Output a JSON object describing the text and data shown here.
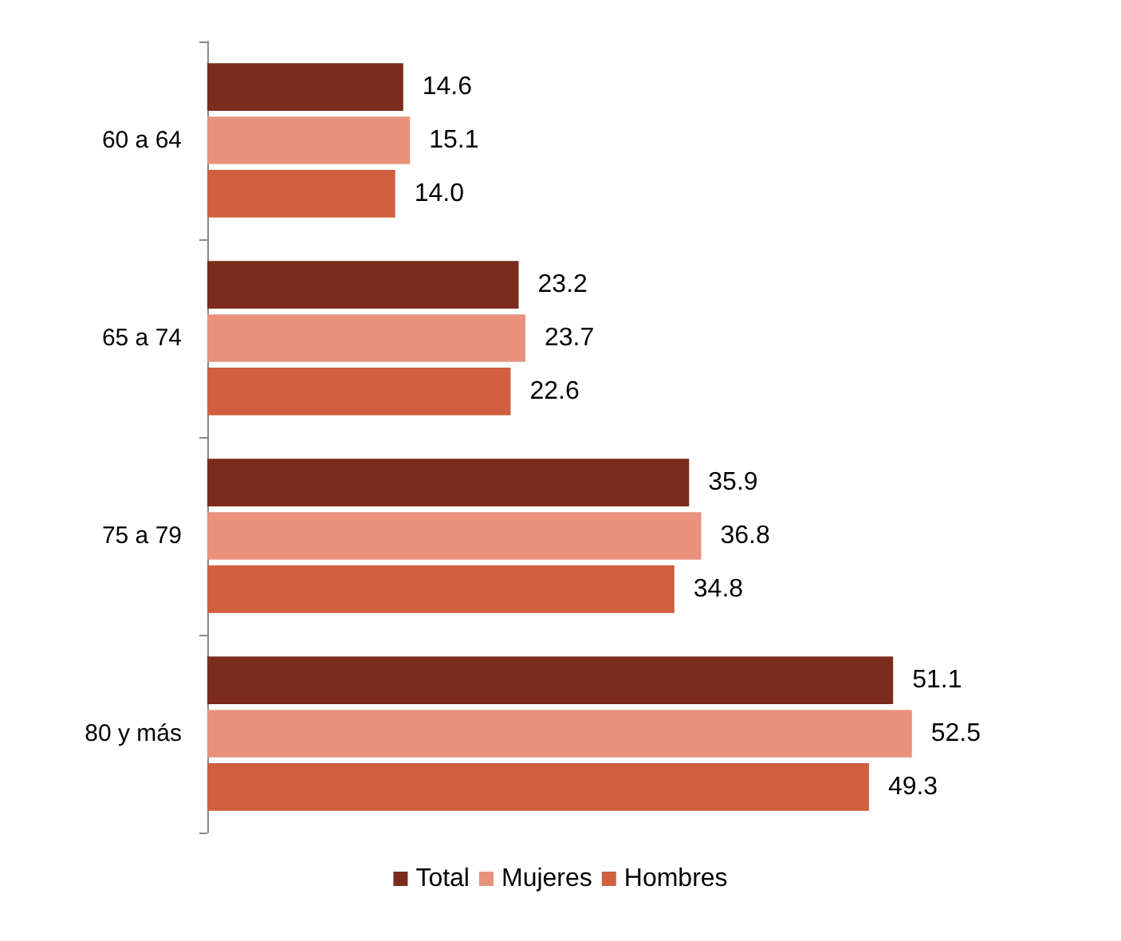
{
  "chart_data": {
    "type": "bar",
    "orientation": "horizontal",
    "categories": [
      "60 a 64",
      "65 a 74",
      "75 a 79",
      "80 y más"
    ],
    "series": [
      {
        "name": "Total",
        "color": "#7b2c1c",
        "values": [
          14.6,
          23.2,
          35.9,
          51.1
        ],
        "value_labels": [
          "14.6",
          "23.2",
          "35.9",
          "51.1"
        ]
      },
      {
        "name": "Mujeres",
        "color": "#e8927c",
        "values": [
          15.1,
          23.7,
          36.8,
          52.5
        ],
        "value_labels": [
          "15.1",
          "23.7",
          "36.8",
          "52.5"
        ]
      },
      {
        "name": "Hombres",
        "color": "#cf5f3e",
        "values": [
          14.0,
          22.6,
          34.8,
          49.3
        ],
        "value_labels": [
          "14.0",
          "22.6",
          "34.8",
          "49.3"
        ]
      }
    ],
    "legend": "bottom"
  }
}
